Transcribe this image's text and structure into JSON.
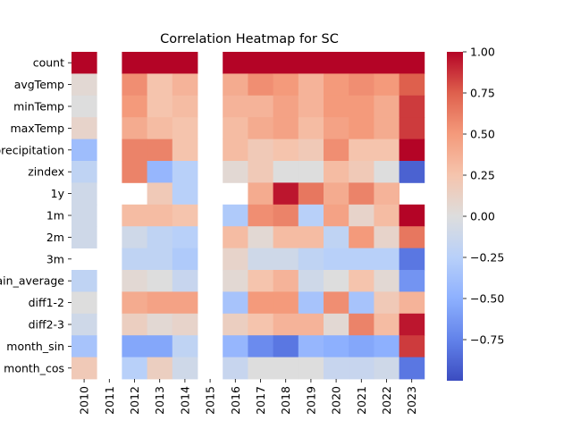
{
  "chart_data": {
    "type": "heatmap",
    "title": "Correlation Heatmap for SC",
    "xlabel": "",
    "ylabel": "",
    "x": [
      "2010",
      "2011",
      "2012",
      "2013",
      "2014",
      "2015",
      "2016",
      "2017",
      "2018",
      "2019",
      "2020",
      "2021",
      "2022",
      "2023"
    ],
    "y": [
      "count",
      "avgTemp",
      "minTemp",
      "maxTemp",
      "precipitation",
      "zindex",
      "1y",
      "1m",
      "2m",
      "3m",
      "rain_average",
      "diff1-2",
      "diff2-3",
      "month_sin",
      "month_cos"
    ],
    "values": [
      [
        1.0,
        null,
        1.0,
        1.0,
        1.0,
        null,
        1.0,
        1.0,
        1.0,
        1.0,
        1.0,
        1.0,
        1.0,
        1.0
      ],
      [
        0.05,
        null,
        0.55,
        0.25,
        0.35,
        null,
        0.4,
        0.55,
        0.5,
        0.35,
        0.5,
        0.55,
        0.5,
        0.75
      ],
      [
        0.0,
        null,
        0.5,
        0.25,
        0.3,
        null,
        0.35,
        0.35,
        0.45,
        0.35,
        0.5,
        0.5,
        0.4,
        0.85
      ],
      [
        0.1,
        null,
        0.4,
        0.3,
        0.25,
        null,
        0.3,
        0.4,
        0.45,
        0.3,
        0.45,
        0.5,
        0.4,
        0.85
      ],
      [
        -0.4,
        null,
        0.6,
        0.6,
        0.25,
        null,
        0.3,
        0.2,
        0.25,
        0.2,
        0.55,
        0.25,
        0.25,
        1.0
      ],
      [
        -0.2,
        null,
        0.6,
        -0.45,
        -0.25,
        null,
        0.05,
        0.2,
        0.0,
        0.0,
        0.3,
        0.2,
        0.0,
        -0.9
      ],
      [
        -0.1,
        null,
        null,
        0.2,
        -0.25,
        null,
        null,
        0.4,
        0.95,
        0.65,
        0.4,
        0.6,
        0.35,
        null
      ],
      [
        -0.1,
        null,
        0.3,
        0.3,
        0.25,
        null,
        -0.3,
        0.55,
        0.6,
        -0.25,
        0.45,
        0.1,
        0.3,
        1.0
      ],
      [
        -0.1,
        null,
        -0.1,
        -0.2,
        -0.25,
        null,
        0.3,
        0.05,
        0.3,
        0.3,
        -0.2,
        0.5,
        0.1,
        0.65
      ],
      [
        null,
        null,
        -0.2,
        -0.2,
        -0.3,
        null,
        0.1,
        -0.1,
        -0.1,
        -0.2,
        -0.25,
        -0.25,
        -0.25,
        -0.8
      ],
      [
        -0.2,
        null,
        0.05,
        0.0,
        -0.15,
        null,
        0.05,
        0.25,
        0.35,
        -0.1,
        0.0,
        0.25,
        0.05,
        -0.65
      ],
      [
        0.0,
        null,
        0.4,
        0.45,
        0.45,
        null,
        -0.35,
        0.5,
        0.5,
        -0.35,
        0.55,
        -0.35,
        0.2,
        0.35
      ],
      [
        -0.1,
        null,
        0.15,
        0.05,
        0.1,
        null,
        0.15,
        0.25,
        0.35,
        0.35,
        0.05,
        0.6,
        0.3,
        0.95
      ],
      [
        -0.35,
        null,
        -0.55,
        -0.55,
        -0.2,
        null,
        -0.45,
        -0.7,
        -0.8,
        -0.45,
        -0.5,
        -0.55,
        -0.5,
        0.85
      ],
      [
        0.2,
        null,
        -0.25,
        0.15,
        -0.1,
        null,
        -0.15,
        0.0,
        0.0,
        0.0,
        -0.15,
        -0.15,
        -0.1,
        -0.8
      ]
    ],
    "colorbar": {
      "range": [
        -1.0,
        1.0
      ],
      "ticks": [
        -0.75,
        -0.5,
        -0.25,
        0.0,
        0.25,
        0.5,
        0.75,
        1.0
      ],
      "tick_labels": [
        "−0.75",
        "−0.50",
        "−0.25",
        "0.00",
        "0.25",
        "0.50",
        "0.75",
        "1.00"
      ],
      "colormap": "coolwarm"
    },
    "grid": false,
    "legend": "colorbar-right"
  }
}
